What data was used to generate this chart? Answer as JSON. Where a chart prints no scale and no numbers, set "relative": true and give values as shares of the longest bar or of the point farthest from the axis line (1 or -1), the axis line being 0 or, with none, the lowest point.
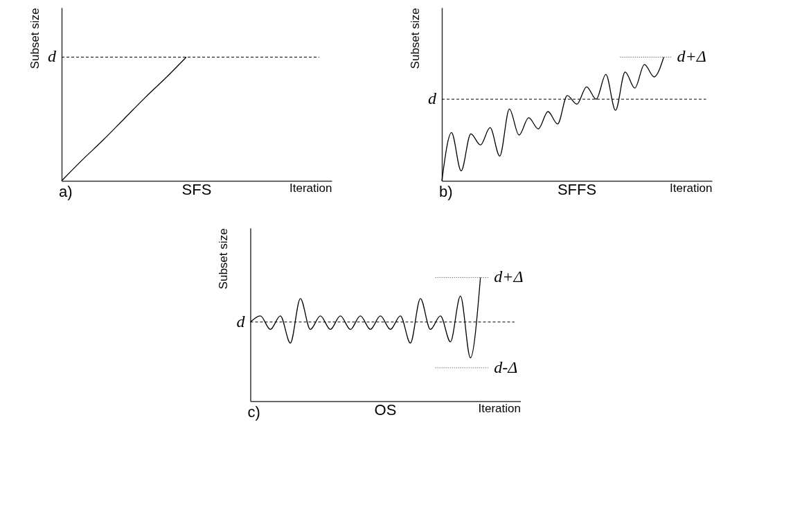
{
  "chart_data": [
    {
      "type": "line",
      "relative": true,
      "title": "SFS",
      "xlabel": "Iteration",
      "ylabel": "Subset size",
      "annotations": [
        "a)"
      ],
      "tick_labels": false,
      "line_style": "solid",
      "categories": [
        null,
        null,
        null,
        null,
        null,
        null,
        null,
        null,
        null,
        null,
        null,
        null,
        null,
        null
      ],
      "series": [
        {
          "color": "#000000",
          "values": [
            0,
            0.17,
            0.33,
            0.5,
            0.67,
            0.83,
            1,
            null,
            null,
            null,
            null,
            null,
            null,
            null
          ]
        }
      ],
      "ref_lines": [
        {
          "axis": "y",
          "value": 1,
          "label": "d",
          "line_style": "dashed"
        }
      ]
    },
    {
      "type": "line",
      "relative": true,
      "title": "SFFS",
      "xlabel": "Iteration",
      "ylabel": "Subset size",
      "annotations": [
        "b)"
      ],
      "tick_labels": false,
      "line_style": "solid",
      "categories": [
        null,
        null,
        null,
        null,
        null,
        null,
        null,
        null,
        null,
        null,
        null,
        null,
        null,
        null,
        null,
        null,
        null,
        null,
        null,
        null,
        null,
        null,
        null,
        null,
        null,
        null,
        null,
        null,
        null
      ],
      "series": [
        {
          "color": "#000000",
          "values": [
            0,
            0.39,
            0.08,
            0.38,
            0.29,
            0.43,
            0.2,
            0.58,
            0.37,
            0.51,
            0.42,
            0.56,
            0.46,
            0.69,
            0.62,
            0.76,
            0.66,
            0.86,
            0.57,
            0.88,
            0.75,
            0.94,
            0.84,
            1,
            null,
            null,
            null,
            null,
            null
          ]
        }
      ],
      "ref_lines": [
        {
          "axis": "y",
          "value": 0.66,
          "label": "d",
          "line_style": "dashed"
        },
        {
          "axis": "y",
          "value": 1,
          "label": "d+Δ",
          "line_style": "dotted"
        }
      ]
    },
    {
      "type": "line",
      "relative": true,
      "title": "OS",
      "xlabel": "Iteration",
      "ylabel": "Subset size",
      "annotations": [
        "c)"
      ],
      "tick_labels": false,
      "line_style": "solid",
      "categories": [
        null,
        null,
        null,
        null,
        null,
        null,
        null,
        null,
        null,
        null,
        null,
        null,
        null,
        null,
        null,
        null,
        null,
        null,
        null,
        null,
        null,
        null,
        null,
        null,
        null,
        null,
        null,
        null
      ],
      "series": [
        {
          "color": "#000000",
          "values": [
            0.64,
            0.69,
            0.58,
            0.69,
            0.47,
            0.83,
            0.58,
            0.69,
            0.58,
            0.69,
            0.58,
            0.69,
            0.58,
            0.69,
            0.58,
            0.69,
            0.47,
            0.83,
            0.58,
            0.69,
            0.48,
            0.85,
            0.35,
            1,
            null,
            null,
            null,
            null
          ]
        }
      ],
      "ref_lines": [
        {
          "axis": "y",
          "value": 0.64,
          "label": "d",
          "line_style": "dashed"
        },
        {
          "axis": "y",
          "value": 1,
          "label": "d+Δ",
          "line_style": "dotted"
        },
        {
          "axis": "y",
          "value": 0.27,
          "label": "d-Δ",
          "line_style": "dotted"
        }
      ]
    }
  ]
}
